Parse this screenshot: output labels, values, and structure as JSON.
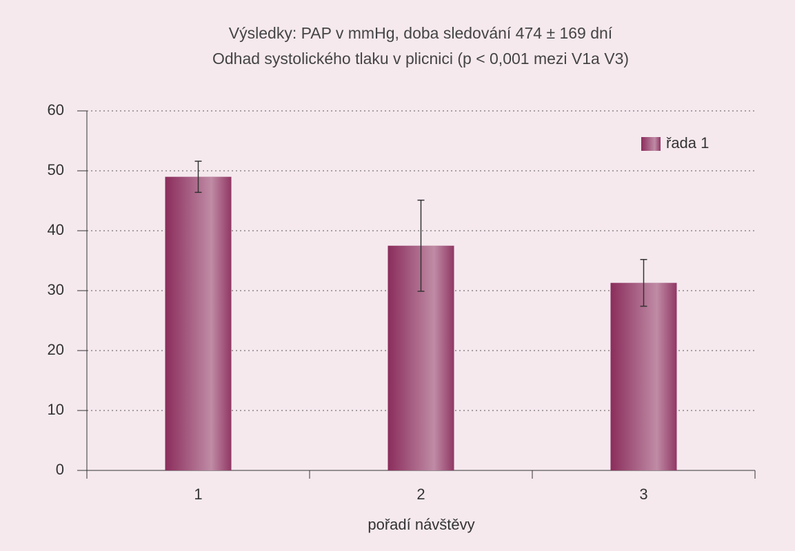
{
  "chart_data": {
    "type": "bar",
    "title": "Výsledky: PAP v mmHg,  doba sledování 474 ± 169 dní",
    "subtitle": "Odhad systolického tlaku v plicnici (p < 0,001 mezi V1a V3)",
    "x_label": "pořadí návštěvy",
    "categories": [
      "1",
      "2",
      "3"
    ],
    "series": [
      {
        "name": "řada 1",
        "color": "#8b2d5c",
        "values": [
          49,
          37.5,
          31.3
        ],
        "errors": [
          2.6,
          7.6,
          3.9
        ]
      }
    ],
    "ylim": [
      0,
      60
    ],
    "yticks": [
      0,
      10,
      20,
      30,
      40,
      50,
      60
    ],
    "grid": true,
    "legend": "upper right"
  }
}
